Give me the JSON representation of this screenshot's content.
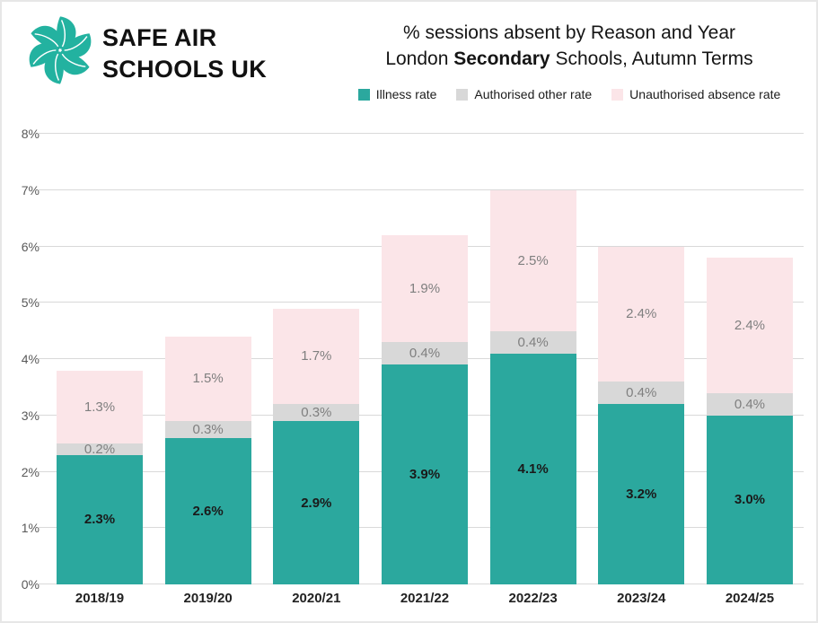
{
  "brand": {
    "name_line1": "SAFE AIR",
    "name_line2": "SCHOOLS UK",
    "logo_color": "#23B2A0"
  },
  "title": {
    "line1": "% sessions absent by Reason and Year",
    "line2_prefix": "London ",
    "line2_bold": "Secondary",
    "line2_suffix": " Schools, Autumn Terms"
  },
  "chart_data": {
    "type": "bar",
    "stacked": true,
    "title": "% sessions absent by Reason and Year",
    "subtitle": "London Secondary Schools, Autumn Terms",
    "categories": [
      "2018/19",
      "2019/20",
      "2020/21",
      "2021/22",
      "2022/23",
      "2023/24",
      "2024/25"
    ],
    "series": [
      {
        "name": "Illness rate",
        "color": "#2BA89E",
        "label_style": "dark",
        "values": [
          2.3,
          2.6,
          2.9,
          3.9,
          4.1,
          3.2,
          3.0
        ]
      },
      {
        "name": "Authorised other rate",
        "color": "#D8D8D8",
        "label_style": "grey",
        "values": [
          0.2,
          0.3,
          0.3,
          0.4,
          0.4,
          0.4,
          0.4
        ]
      },
      {
        "name": "Unauthorised absence rate",
        "color": "#FBE5E8",
        "label_style": "grey",
        "values": [
          1.3,
          1.5,
          1.7,
          1.9,
          2.5,
          2.4,
          2.4
        ]
      }
    ],
    "y_ticks": [
      "0%",
      "1%",
      "2%",
      "3%",
      "4%",
      "5%",
      "6%",
      "7%",
      "8%"
    ],
    "ylim": [
      0,
      8
    ],
    "grid": true,
    "legend_position": "top",
    "data_label_format": "{value}%"
  },
  "colors": {
    "grid": "#D9D9D9",
    "axis_text": "#595959",
    "label_grey": "#7F7F7F",
    "label_dark": "#1A1A1A"
  }
}
